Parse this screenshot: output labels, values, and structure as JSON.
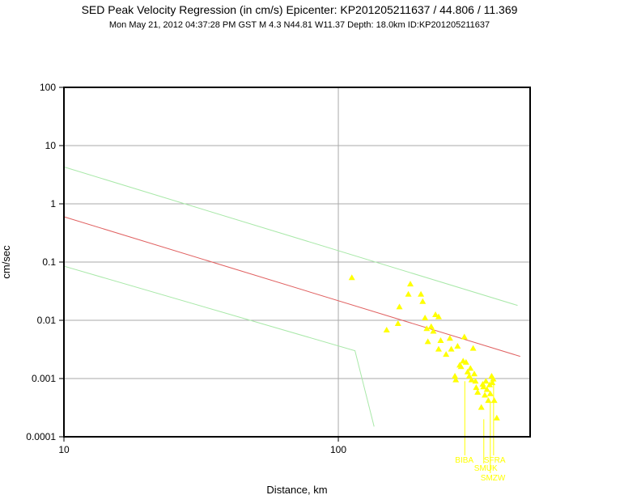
{
  "chart_data": {
    "type": "scatter",
    "title": "SED Peak Velocity Regression (in cm/s) Epicenter: KP201205211637 / 44.806 / 11.369",
    "subtitle": "Mon May 21, 2012 04:37:28 PM GST   M 4.3    N44.81 W11.37   Depth: 18.0km   ID:KP201205211637",
    "xlabel": "Distance, km",
    "ylabel": "cm/sec",
    "xscale": "log",
    "yscale": "log",
    "xlim": [
      10,
      500
    ],
    "ylim": [
      0.0001,
      100
    ],
    "x_ticks": [
      {
        "v": 10,
        "label": "10"
      },
      {
        "v": 100,
        "label": "100"
      }
    ],
    "y_ticks": [
      {
        "v": 100,
        "label": "100"
      },
      {
        "v": 10,
        "label": "10"
      },
      {
        "v": 1,
        "label": "1"
      },
      {
        "v": 0.1,
        "label": "0.1"
      },
      {
        "v": 0.01,
        "label": "0.01"
      },
      {
        "v": 0.001,
        "label": "0.001"
      },
      {
        "v": 0.0001,
        "label": "0.0001"
      }
    ],
    "grid": true,
    "colors": {
      "points": "#ffff00",
      "regression": "#e06060",
      "bounds": "#a8e8a8",
      "grid": "#aaaaaa"
    },
    "regression": [
      [
        10,
        0.6
      ],
      [
        460,
        0.0024
      ]
    ],
    "upper_bound": [
      [
        10,
        4.3
      ],
      [
        450,
        0.018
      ]
    ],
    "lower_bound": [
      [
        10,
        0.085
      ],
      [
        115,
        0.003
      ],
      [
        135,
        0.00015
      ]
    ],
    "points": [
      [
        112,
        0.054
      ],
      [
        150,
        0.0068
      ],
      [
        165,
        0.0088
      ],
      [
        167,
        0.017
      ],
      [
        180,
        0.028
      ],
      [
        183,
        0.042
      ],
      [
        200,
        0.028
      ],
      [
        203,
        0.021
      ],
      [
        207,
        0.011
      ],
      [
        210,
        0.0072
      ],
      [
        212,
        0.0043
      ],
      [
        218,
        0.0078
      ],
      [
        222,
        0.0065
      ],
      [
        226,
        0.0125
      ],
      [
        232,
        0.0115
      ],
      [
        236,
        0.0045
      ],
      [
        232,
        0.0032
      ],
      [
        247,
        0.0026
      ],
      [
        255,
        0.0049
      ],
      [
        258,
        0.0032
      ],
      [
        266,
        0.0011
      ],
      [
        268,
        0.00095
      ],
      [
        272,
        0.0036
      ],
      [
        277,
        0.0017
      ],
      [
        280,
        0.0016
      ],
      [
        285,
        0.002
      ],
      [
        288,
        0.0052
      ],
      [
        292,
        0.0019
      ],
      [
        296,
        0.0013
      ],
      [
        300,
        0.0011
      ],
      [
        303,
        0.0015
      ],
      [
        306,
        0.00095
      ],
      [
        310,
        0.0033
      ],
      [
        313,
        0.0012
      ],
      [
        316,
        0.0009
      ],
      [
        318,
        0.0007
      ],
      [
        322,
        0.00058
      ],
      [
        332,
        0.00032
      ],
      [
        336,
        0.0008
      ],
      [
        338,
        0.00072
      ],
      [
        342,
        0.00052
      ],
      [
        345,
        0.0009
      ],
      [
        348,
        0.00065
      ],
      [
        352,
        0.00042
      ],
      [
        356,
        0.00078
      ],
      [
        358,
        0.00055
      ],
      [
        362,
        0.0011
      ],
      [
        364,
        0.00085
      ],
      [
        367,
        0.00098
      ],
      [
        370,
        0.00042
      ],
      [
        378,
        0.00021
      ]
    ],
    "stations": [
      {
        "name": "BIBA",
        "x": 289,
        "y": 0.0009
      },
      {
        "name": "SMUK",
        "x": 339,
        "y": 0.0002
      },
      {
        "name": "SFRA",
        "x": 368,
        "y": 0.0009
      },
      {
        "name": "SMZW",
        "x": 358,
        "y": 0.0004
      }
    ]
  }
}
